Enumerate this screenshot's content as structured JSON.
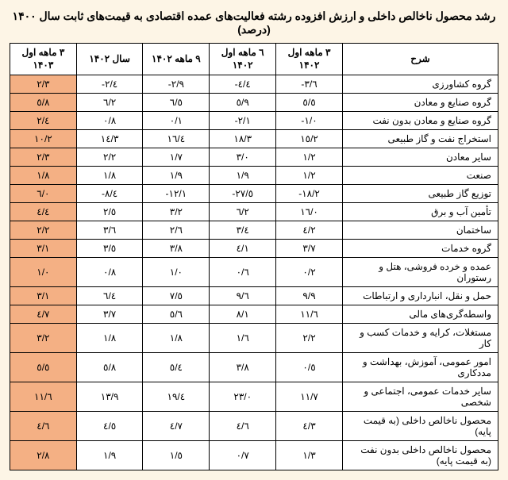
{
  "title": "رشد محصول ناخالص داخلی و ارزش افزوده رشته فعالیت‌های عمده اقتصادی به قیمت‌های ثابت سال ۱۴۰۰ (درصد)",
  "headers": {
    "desc": "شرح",
    "c1": "۳ ماهه اول\n۱۴۰۲",
    "c2": "٦ ماهه اول\n۱۴۰۲",
    "c3": "۹ ماهه\n۱۴۰۲",
    "c4": "سال\n۱۴۰۲",
    "c5": "۳ ماهه اول\n۱۴۰۳"
  },
  "rows": [
    {
      "desc": "گروه کشاورزی",
      "v": [
        "-۳/٦",
        "-٤/٤",
        "-۲/۹",
        "-۲/٤",
        "۲/۳"
      ]
    },
    {
      "desc": "گروه صنایع و معادن",
      "v": [
        "٥/٥",
        "٥/۹",
        "٦/٥",
        "٦/۲",
        "٥/۸"
      ]
    },
    {
      "desc": "گروه صنایع و معادن بدون نفت",
      "v": [
        "-۱/۰",
        "-۲/۱",
        "۰/۱",
        "۰/۸",
        "۲/٤"
      ]
    },
    {
      "desc": "استخراج نفت و گاز طبیعی",
      "v": [
        "۱٥/۲",
        "۱۸/۳",
        "۱٦/٤",
        "۱٤/۳",
        "۱۰/۲"
      ]
    },
    {
      "desc": "سایر معادن",
      "v": [
        "۱/۲",
        "۳/۰",
        "۱/۷",
        "۲/۲",
        "۲/۳"
      ]
    },
    {
      "desc": "صنعت",
      "v": [
        "۱/۲",
        "۱/۹",
        "۱/۹",
        "۱/۸",
        "۱/۸"
      ]
    },
    {
      "desc": "توزیع گاز طبیعی",
      "v": [
        "-۱۸/۲",
        "-۲۷/٥",
        "-۱۲/۱",
        "-۸/٤",
        "٦/۰"
      ]
    },
    {
      "desc": "تأمین آب و برق",
      "v": [
        "۱٦/۰",
        "٦/۲",
        "۳/۲",
        "۲/٥",
        "٤/٤"
      ]
    },
    {
      "desc": "ساختمان",
      "v": [
        "٤/۲",
        "۳/٤",
        "۲/٦",
        "۳/٦",
        "۲/۲"
      ]
    },
    {
      "desc": "گروه خدمات",
      "v": [
        "۳/۷",
        "٤/۱",
        "۳/۸",
        "۳/٥",
        "۳/۱"
      ]
    },
    {
      "desc": "عمده و خرده فروشی، هتل و رستوران",
      "v": [
        "۰/۲",
        "۰/٦",
        "۱/۰",
        "۰/۸",
        "۱/۰"
      ]
    },
    {
      "desc": "حمل و نقل، انبارداری و ارتباطات",
      "v": [
        "۹/۹",
        "۹/٦",
        "۷/٥",
        "٦/٤",
        "۳/۱"
      ]
    },
    {
      "desc": "واسطه‌گری‌های مالی",
      "v": [
        "۱۱/٦",
        "۸/۱",
        "٥/٦",
        "۳/۷",
        "٤/۷"
      ]
    },
    {
      "desc": "مستغلات، کرایه و خدمات کسب و کار",
      "v": [
        "۲/۲",
        "۱/٦",
        "۱/۸",
        "۱/۸",
        "۳/۲"
      ]
    },
    {
      "desc": "امور عمومی، آموزش، بهداشت و مددکاری",
      "v": [
        "۰/٥",
        "۳/۸",
        "٥/٤",
        "٥/۸",
        "٥/٥"
      ]
    },
    {
      "desc": "سایر خدمات عمومی، اجتماعی و شخصی",
      "v": [
        "۱۱/۷",
        "۲۳/۰",
        "۱۹/٤",
        "۱۳/۹",
        "۱۱/٦"
      ]
    },
    {
      "desc": "محصول ناخالص داخلی (به قیمت پایه)",
      "v": [
        "٤/۳",
        "٤/٦",
        "٤/۷",
        "٤/٥",
        "٤/٦"
      ]
    },
    {
      "desc": "محصول ناخالص داخلی بدون نفت (به قیمت پایه)",
      "v": [
        "۱/۳",
        "۰/۷",
        "۱/٥",
        "۱/۹",
        "۲/۸"
      ]
    }
  ]
}
